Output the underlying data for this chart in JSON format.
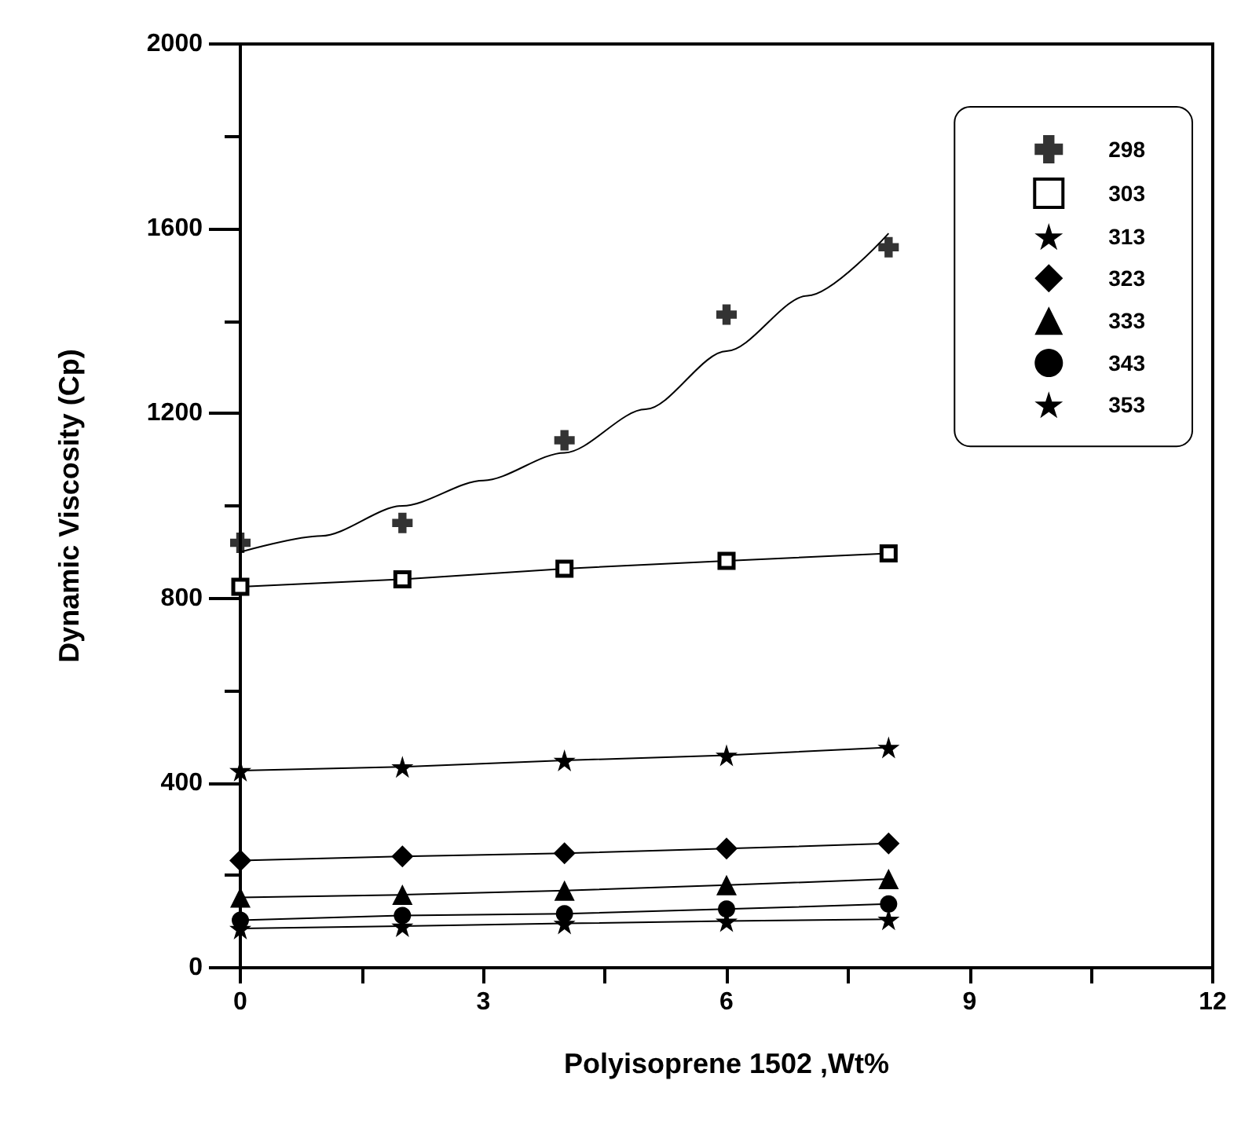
{
  "chart_data": {
    "type": "line",
    "xlabel": "Polyisoprene 1502 ,Wt%",
    "ylabel": "Dynamic Viscosity (Cp)",
    "x": [
      0,
      2,
      4,
      6,
      8
    ],
    "xlim": [
      0,
      12
    ],
    "xticks": [
      0,
      3,
      6,
      9,
      12
    ],
    "ylim": [
      0,
      2000
    ],
    "yticks": [
      0,
      400,
      800,
      1200,
      1600,
      2000
    ],
    "grid": false,
    "legend": "top right",
    "line_style": "solid",
    "series": [
      {
        "name": "298",
        "type": "scatter",
        "marker": "cross",
        "color": "#000000",
        "values": [
          920,
          963,
          1142,
          1414,
          1560
        ]
      },
      {
        "type": "line",
        "marker": "none",
        "color": "#000000",
        "x": [
          0,
          1,
          2,
          3,
          4,
          5,
          6,
          7,
          8
        ],
        "values": [
          900,
          935,
          1000,
          1055,
          1115,
          1209,
          1335,
          1455,
          1590
        ]
      },
      {
        "name": "303",
        "marker": "square",
        "color": "#000000",
        "values": [
          825,
          841,
          864,
          881,
          897
        ]
      },
      {
        "name": "313",
        "marker": "star",
        "color": "#000000",
        "values": [
          427,
          435,
          449,
          460,
          477
        ]
      },
      {
        "name": "323",
        "marker": "diamond",
        "color": "#000000",
        "values": [
          232,
          241,
          248,
          258,
          269
        ]
      },
      {
        "name": "333",
        "marker": "triangle",
        "color": "#000000",
        "values": [
          152,
          158,
          167,
          179,
          192
        ]
      },
      {
        "name": "343",
        "marker": "circle",
        "color": "#000000",
        "values": [
          103,
          113,
          117,
          127,
          138
        ]
      },
      {
        "name": "353",
        "marker": "star",
        "color": "#000000",
        "values": [
          85,
          90,
          96,
          101,
          105
        ]
      }
    ]
  }
}
